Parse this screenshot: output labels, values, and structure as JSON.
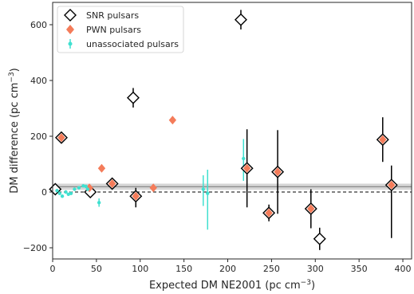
{
  "chart_data": {
    "type": "scatter",
    "xlabel": "Expected DM NE2001 (pc cm",
    "xlabel_sup": "−3",
    "xlabel_close": ")",
    "ylabel": "DM difference (pc cm",
    "ylabel_sup": "−3",
    "ylabel_close": ")",
    "xlim": [
      0,
      410
    ],
    "ylim": [
      -240,
      680
    ],
    "xticks": [
      0,
      50,
      100,
      150,
      200,
      250,
      300,
      350,
      400
    ],
    "yticks": [
      -200,
      0,
      200,
      400,
      600
    ],
    "zero_line": 0,
    "band": [
      8,
      30
    ],
    "band_center": 19,
    "grid": false,
    "legend_position": "top-left",
    "colors": {
      "snr": "#000000",
      "pwn": "#f47c5a",
      "unassoc": "#40e0d0",
      "band": "#c8c8c8"
    },
    "series": [
      {
        "name": "SNR pulsars",
        "marker": "diamond-open",
        "points": [
          {
            "x": 3,
            "y": 10,
            "yerr": [
              0,
              0
            ]
          },
          {
            "x": 10,
            "y": 195,
            "yerr": [
              0,
              0
            ]
          },
          {
            "x": 43,
            "y": 0,
            "yerr": [
              0,
              0
            ]
          },
          {
            "x": 68,
            "y": 30,
            "yerr": [
              20,
              20
            ]
          },
          {
            "x": 92,
            "y": 338,
            "yerr": [
              35,
              35
            ]
          },
          {
            "x": 95,
            "y": -15,
            "yerr": [
              40,
              30
            ]
          },
          {
            "x": 215,
            "y": 618,
            "yerr": [
              35,
              35
            ]
          },
          {
            "x": 222,
            "y": 85,
            "yerr": [
              140,
              140
            ]
          },
          {
            "x": 257,
            "y": 72,
            "yerr": [
              150,
              150
            ]
          },
          {
            "x": 247,
            "y": -75,
            "yerr": [
              30,
              30
            ]
          },
          {
            "x": 295,
            "y": -60,
            "yerr": [
              70,
              70
            ]
          },
          {
            "x": 305,
            "y": -168,
            "yerr": [
              40,
              40
            ]
          },
          {
            "x": 377,
            "y": 188,
            "yerr": [
              80,
              80
            ]
          },
          {
            "x": 387,
            "y": 25,
            "yerr": [
              190,
              70
            ]
          }
        ]
      },
      {
        "name": "PWN pulsars",
        "marker": "diamond-filled",
        "points": [
          {
            "x": 10,
            "y": 195
          },
          {
            "x": 42,
            "y": 15
          },
          {
            "x": 56,
            "y": 85
          },
          {
            "x": 68,
            "y": 30
          },
          {
            "x": 95,
            "y": -15
          },
          {
            "x": 115,
            "y": 15
          },
          {
            "x": 137,
            "y": 258
          },
          {
            "x": 222,
            "y": 85
          },
          {
            "x": 257,
            "y": 72
          },
          {
            "x": 247,
            "y": -75
          },
          {
            "x": 295,
            "y": -60
          },
          {
            "x": 377,
            "y": 188
          },
          {
            "x": 387,
            "y": 25
          }
        ]
      },
      {
        "name": "unassociated pulsars",
        "marker": "dot-errorbar",
        "points": [
          {
            "x": 5,
            "y": 5,
            "yerr": [
              5,
              5
            ]
          },
          {
            "x": 8,
            "y": -5,
            "yerr": [
              5,
              5
            ]
          },
          {
            "x": 11,
            "y": -15,
            "yerr": [
              5,
              5
            ]
          },
          {
            "x": 15,
            "y": 0,
            "yerr": [
              5,
              5
            ]
          },
          {
            "x": 18,
            "y": -8,
            "yerr": [
              5,
              5
            ]
          },
          {
            "x": 21,
            "y": -5,
            "yerr": [
              5,
              5
            ]
          },
          {
            "x": 25,
            "y": 10,
            "yerr": [
              5,
              5
            ]
          },
          {
            "x": 30,
            "y": 15,
            "yerr": [
              5,
              5
            ]
          },
          {
            "x": 35,
            "y": 22,
            "yerr": [
              5,
              5
            ]
          },
          {
            "x": 38,
            "y": 20,
            "yerr": [
              5,
              5
            ]
          },
          {
            "x": 40,
            "y": 10,
            "yerr": [
              8,
              8
            ]
          },
          {
            "x": 53,
            "y": -38,
            "yerr": [
              15,
              15
            ]
          },
          {
            "x": 172,
            "y": 10,
            "yerr": [
              60,
              50
            ]
          },
          {
            "x": 177,
            "y": -5,
            "yerr": [
              130,
              85
            ]
          },
          {
            "x": 218,
            "y": 120,
            "yerr": [
              80,
              70
            ]
          }
        ]
      }
    ]
  }
}
